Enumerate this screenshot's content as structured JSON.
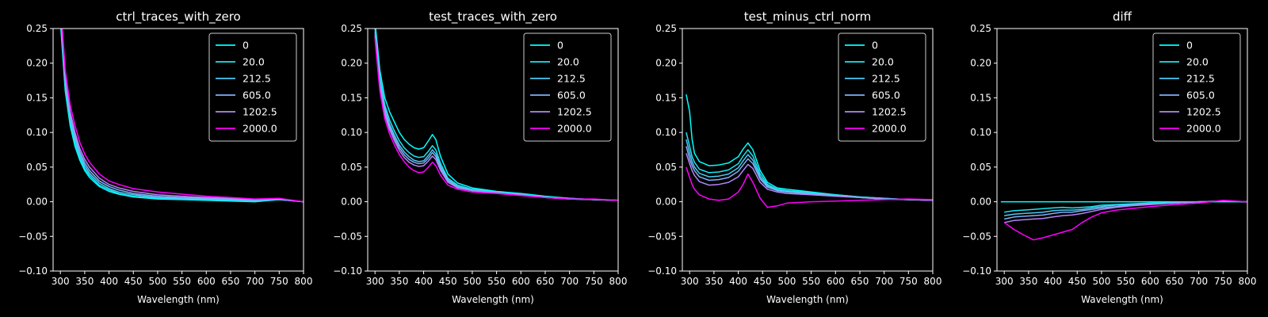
{
  "chart_data": [
    {
      "type": "line",
      "title": "ctrl_traces_with_zero",
      "xlabel": "Wavelength (nm)",
      "ylabel": "",
      "xlim": [
        285,
        800
      ],
      "ylim": [
        -0.1,
        0.25
      ],
      "xticks": [
        "300",
        "350",
        "400",
        "450",
        "500",
        "550",
        "600",
        "650",
        "700",
        "750",
        "800"
      ],
      "yticks": [
        "−0.10",
        "−0.05",
        "0.00",
        "0.05",
        "0.10",
        "0.15",
        "0.20",
        "0.25"
      ],
      "legend": "top-right",
      "x": [
        300,
        310,
        320,
        330,
        340,
        350,
        360,
        380,
        400,
        420,
        450,
        500,
        550,
        600,
        650,
        700,
        750,
        800
      ],
      "series": [
        {
          "name": "0",
          "color": "#00ffff",
          "values": [
            0.26,
            0.16,
            0.11,
            0.08,
            0.06,
            0.045,
            0.035,
            0.022,
            0.015,
            0.011,
            0.007,
            0.004,
            0.003,
            0.002,
            0.001,
            0.0,
            0.003,
            0.0
          ]
        },
        {
          "name": "20.0",
          "color": "#1ae5f2",
          "values": [
            0.265,
            0.165,
            0.115,
            0.085,
            0.064,
            0.048,
            0.038,
            0.024,
            0.017,
            0.012,
            0.008,
            0.005,
            0.004,
            0.003,
            0.002,
            0.001,
            0.003,
            0.0
          ]
        },
        {
          "name": "212.5",
          "color": "#4dc8f5",
          "values": [
            0.27,
            0.17,
            0.12,
            0.09,
            0.068,
            0.052,
            0.041,
            0.027,
            0.019,
            0.014,
            0.01,
            0.006,
            0.005,
            0.004,
            0.003,
            0.002,
            0.004,
            0.0
          ]
        },
        {
          "name": "605.0",
          "color": "#7eb0f7",
          "values": [
            0.275,
            0.175,
            0.125,
            0.095,
            0.072,
            0.056,
            0.045,
            0.03,
            0.022,
            0.017,
            0.012,
            0.008,
            0.006,
            0.005,
            0.004,
            0.003,
            0.004,
            0.0
          ]
        },
        {
          "name": "1202.5",
          "color": "#b585f8",
          "values": [
            0.28,
            0.18,
            0.13,
            0.1,
            0.077,
            0.061,
            0.05,
            0.034,
            0.025,
            0.02,
            0.015,
            0.01,
            0.008,
            0.006,
            0.005,
            0.003,
            0.004,
            0.0
          ]
        },
        {
          "name": "2000.0",
          "color": "#ff00ff",
          "values": [
            0.29,
            0.19,
            0.14,
            0.11,
            0.086,
            0.069,
            0.057,
            0.04,
            0.03,
            0.025,
            0.019,
            0.014,
            0.011,
            0.008,
            0.006,
            0.004,
            0.005,
            0.0
          ]
        }
      ]
    },
    {
      "type": "line",
      "title": "test_traces_with_zero",
      "xlabel": "Wavelength (nm)",
      "ylabel": "",
      "xlim": [
        285,
        800
      ],
      "ylim": [
        -0.1,
        0.25
      ],
      "xticks": [
        "300",
        "350",
        "400",
        "450",
        "500",
        "550",
        "600",
        "650",
        "700",
        "750",
        "800"
      ],
      "yticks": [
        "−0.10",
        "−0.05",
        "0.00",
        "0.05",
        "0.10",
        "0.15",
        "0.20",
        "0.25"
      ],
      "legend": "top-right",
      "x": [
        300,
        310,
        320,
        330,
        340,
        350,
        360,
        370,
        380,
        390,
        400,
        410,
        418,
        425,
        435,
        450,
        470,
        500,
        550,
        600,
        650,
        700,
        750,
        800
      ],
      "series": [
        {
          "name": "0",
          "color": "#00ffff",
          "values": [
            0.26,
            0.19,
            0.15,
            0.13,
            0.115,
            0.1,
            0.09,
            0.083,
            0.078,
            0.076,
            0.078,
            0.088,
            0.097,
            0.09,
            0.065,
            0.04,
            0.027,
            0.02,
            0.015,
            0.012,
            0.008,
            0.005,
            0.003,
            0.002
          ]
        },
        {
          "name": "20.0",
          "color": "#1ae5f2",
          "values": [
            0.255,
            0.18,
            0.14,
            0.118,
            0.102,
            0.088,
            0.078,
            0.071,
            0.066,
            0.064,
            0.065,
            0.073,
            0.081,
            0.075,
            0.055,
            0.034,
            0.024,
            0.018,
            0.014,
            0.011,
            0.007,
            0.005,
            0.003,
            0.002
          ]
        },
        {
          "name": "212.5",
          "color": "#4dc8f5",
          "values": [
            0.25,
            0.175,
            0.135,
            0.112,
            0.096,
            0.082,
            0.072,
            0.065,
            0.06,
            0.058,
            0.059,
            0.067,
            0.075,
            0.069,
            0.051,
            0.032,
            0.022,
            0.017,
            0.013,
            0.01,
            0.007,
            0.004,
            0.003,
            0.002
          ]
        },
        {
          "name": "605.0",
          "color": "#7eb0f7",
          "values": [
            0.245,
            0.17,
            0.13,
            0.108,
            0.092,
            0.078,
            0.068,
            0.061,
            0.057,
            0.055,
            0.056,
            0.063,
            0.071,
            0.065,
            0.048,
            0.03,
            0.021,
            0.016,
            0.013,
            0.01,
            0.006,
            0.004,
            0.003,
            0.002
          ]
        },
        {
          "name": "1202.5",
          "color": "#b585f8",
          "values": [
            0.24,
            0.165,
            0.126,
            0.104,
            0.088,
            0.074,
            0.064,
            0.057,
            0.053,
            0.051,
            0.052,
            0.059,
            0.066,
            0.061,
            0.045,
            0.028,
            0.02,
            0.016,
            0.013,
            0.01,
            0.006,
            0.004,
            0.003,
            0.002
          ]
        },
        {
          "name": "2000.0",
          "color": "#ff00ff",
          "values": [
            0.235,
            0.16,
            0.12,
            0.098,
            0.082,
            0.068,
            0.058,
            0.05,
            0.045,
            0.042,
            0.043,
            0.05,
            0.057,
            0.052,
            0.038,
            0.024,
            0.018,
            0.014,
            0.012,
            0.009,
            0.006,
            0.004,
            0.004,
            0.002
          ]
        }
      ]
    },
    {
      "type": "line",
      "title": "test_minus_ctrl_norm",
      "xlabel": "Wavelength (nm)",
      "ylabel": "",
      "xlim": [
        285,
        800
      ],
      "ylim": [
        -0.1,
        0.25
      ],
      "xticks": [
        "300",
        "350",
        "400",
        "450",
        "500",
        "550",
        "600",
        "650",
        "700",
        "750",
        "800"
      ],
      "yticks": [
        "−0.10",
        "−0.05",
        "0.00",
        "0.05",
        "0.10",
        "0.15",
        "0.20",
        "0.25"
      ],
      "legend": "top-right",
      "x": [
        293,
        300,
        305,
        310,
        320,
        340,
        360,
        380,
        400,
        410,
        420,
        430,
        445,
        460,
        480,
        500,
        550,
        600,
        650,
        700,
        750,
        800
      ],
      "series": [
        {
          "name": "0",
          "color": "#00ffff",
          "values": [
            0.155,
            0.13,
            0.09,
            0.07,
            0.058,
            0.052,
            0.053,
            0.056,
            0.065,
            0.076,
            0.085,
            0.075,
            0.045,
            0.028,
            0.02,
            0.018,
            0.014,
            0.01,
            0.007,
            0.005,
            0.003,
            0.002
          ]
        },
        {
          "name": "20.0",
          "color": "#1ae5f2",
          "values": [
            0.1,
            0.08,
            0.065,
            0.057,
            0.047,
            0.042,
            0.043,
            0.046,
            0.055,
            0.066,
            0.075,
            0.066,
            0.04,
            0.025,
            0.018,
            0.016,
            0.013,
            0.01,
            0.007,
            0.005,
            0.003,
            0.002
          ]
        },
        {
          "name": "212.5",
          "color": "#4dc8f5",
          "values": [
            0.09,
            0.07,
            0.058,
            0.05,
            0.041,
            0.036,
            0.037,
            0.04,
            0.049,
            0.059,
            0.068,
            0.06,
            0.036,
            0.023,
            0.017,
            0.015,
            0.012,
            0.009,
            0.006,
            0.004,
            0.003,
            0.002
          ]
        },
        {
          "name": "605.0",
          "color": "#7eb0f7",
          "values": [
            0.08,
            0.062,
            0.052,
            0.045,
            0.036,
            0.031,
            0.032,
            0.035,
            0.044,
            0.053,
            0.062,
            0.055,
            0.033,
            0.021,
            0.016,
            0.014,
            0.011,
            0.009,
            0.006,
            0.004,
            0.003,
            0.002
          ]
        },
        {
          "name": "1202.5",
          "color": "#b585f8",
          "values": [
            0.07,
            0.055,
            0.045,
            0.038,
            0.029,
            0.024,
            0.025,
            0.028,
            0.036,
            0.045,
            0.054,
            0.048,
            0.028,
            0.018,
            0.014,
            0.012,
            0.01,
            0.008,
            0.006,
            0.004,
            0.003,
            0.002
          ]
        },
        {
          "name": "2000.0",
          "color": "#ff00ff",
          "values": [
            0.05,
            0.035,
            0.025,
            0.018,
            0.01,
            0.004,
            0.002,
            0.004,
            0.014,
            0.025,
            0.04,
            0.028,
            0.005,
            -0.008,
            -0.006,
            -0.002,
            0.0,
            0.001,
            0.002,
            0.003,
            0.004,
            0.003
          ]
        }
      ]
    },
    {
      "type": "line",
      "title": "diff",
      "xlabel": "Wavelength (nm)",
      "ylabel": "",
      "xlim": [
        285,
        800
      ],
      "ylim": [
        -0.1,
        0.25
      ],
      "xticks": [
        "300",
        "350",
        "400",
        "450",
        "500",
        "550",
        "600",
        "650",
        "700",
        "750",
        "800"
      ],
      "yticks": [
        "−0.10",
        "−0.05",
        "0.00",
        "0.05",
        "0.10",
        "0.15",
        "0.20",
        "0.25"
      ],
      "legend": "top-right",
      "x": [
        293,
        300,
        320,
        340,
        360,
        380,
        400,
        420,
        440,
        460,
        480,
        500,
        530,
        560,
        600,
        650,
        700,
        750,
        800
      ],
      "series": [
        {
          "name": "0",
          "color": "#00ffff",
          "values": [
            0.0,
            0.0,
            0.0,
            0.0,
            0.0,
            0.0,
            0.0,
            0.0,
            0.0,
            0.0,
            0.0,
            0.0,
            0.0,
            0.0,
            0.0,
            0.0,
            0.0,
            0.0,
            0.0
          ]
        },
        {
          "name": "20.0",
          "color": "#1ae5f2",
          "values": [
            null,
            -0.015,
            -0.013,
            -0.012,
            -0.011,
            -0.01,
            -0.009,
            -0.008,
            -0.009,
            -0.008,
            -0.007,
            -0.005,
            -0.004,
            -0.003,
            -0.002,
            -0.001,
            0.0,
            0.001,
            0.0
          ]
        },
        {
          "name": "212.5",
          "color": "#4dc8f5",
          "values": [
            null,
            -0.02,
            -0.018,
            -0.017,
            -0.016,
            -0.015,
            -0.013,
            -0.012,
            -0.012,
            -0.011,
            -0.009,
            -0.007,
            -0.005,
            -0.004,
            -0.003,
            -0.002,
            0.0,
            0.001,
            0.0
          ]
        },
        {
          "name": "605.0",
          "color": "#7eb0f7",
          "values": [
            null,
            -0.025,
            -0.022,
            -0.021,
            -0.02,
            -0.019,
            -0.017,
            -0.015,
            -0.015,
            -0.013,
            -0.011,
            -0.009,
            -0.007,
            -0.005,
            -0.003,
            -0.002,
            0.0,
            0.001,
            0.0
          ]
        },
        {
          "name": "1202.5",
          "color": "#b585f8",
          "values": [
            null,
            -0.03,
            -0.027,
            -0.026,
            -0.025,
            -0.024,
            -0.022,
            -0.02,
            -0.019,
            -0.017,
            -0.014,
            -0.011,
            -0.008,
            -0.006,
            -0.004,
            -0.002,
            0.0,
            0.001,
            0.0
          ]
        },
        {
          "name": "2000.0",
          "color": "#ff00ff",
          "values": [
            null,
            -0.03,
            -0.04,
            -0.048,
            -0.055,
            -0.052,
            -0.048,
            -0.044,
            -0.04,
            -0.03,
            -0.022,
            -0.016,
            -0.012,
            -0.01,
            -0.007,
            -0.004,
            -0.002,
            0.002,
            0.0
          ]
        }
      ]
    }
  ]
}
